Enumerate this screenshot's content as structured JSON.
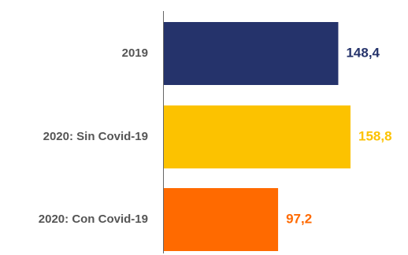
{
  "chart_data": {
    "type": "bar",
    "orientation": "horizontal",
    "categories": [
      "2019",
      "2020: Sin Covid-19",
      "2020: Con Covid-19"
    ],
    "values": [
      148.4,
      158.8,
      97.2
    ],
    "value_labels": [
      "148,4",
      "158,8",
      "97,2"
    ],
    "bar_colors": [
      "#25336b",
      "#fcc200",
      "#ff6a00"
    ],
    "label_colors": [
      "#25336b",
      "#fcc200",
      "#ff6a00"
    ],
    "xlim": [
      0,
      158.8
    ],
    "grid": false,
    "legend": "none"
  }
}
